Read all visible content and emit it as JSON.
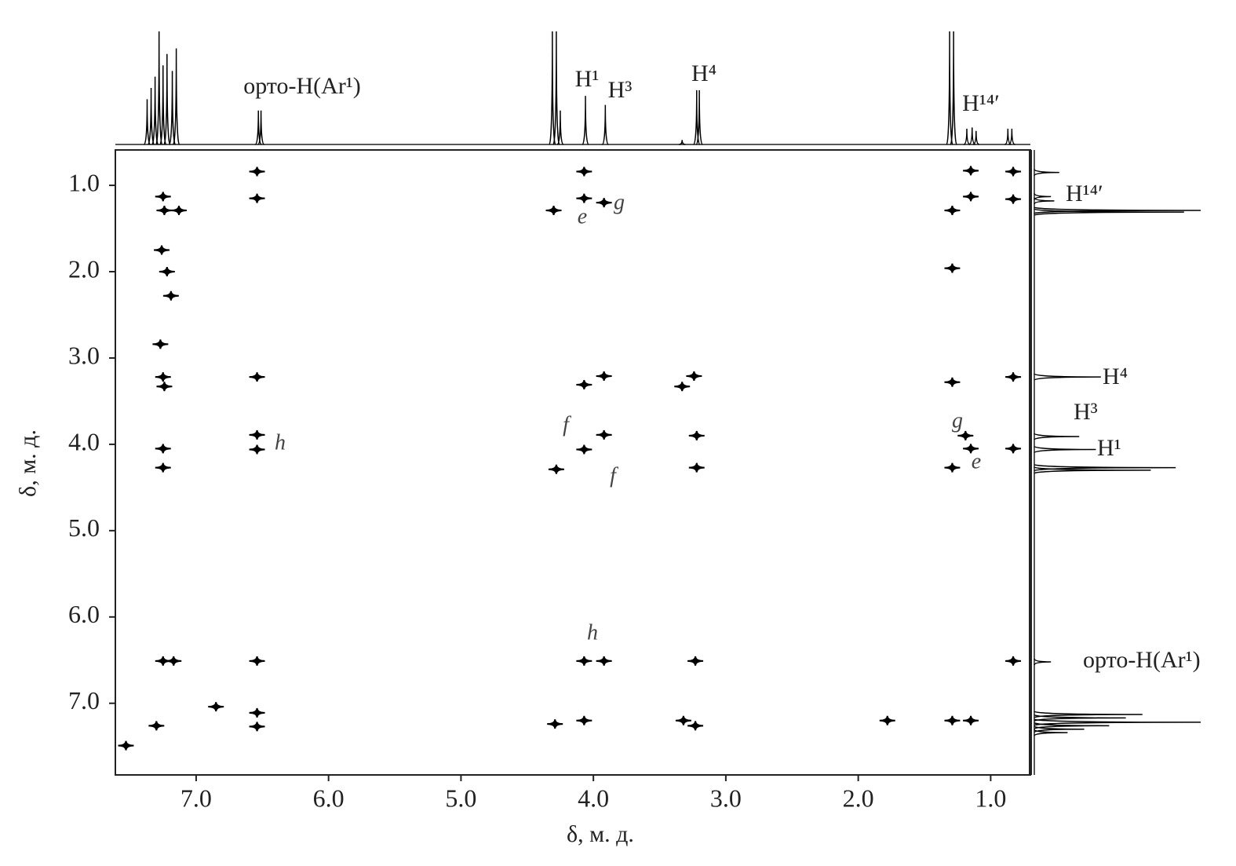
{
  "chart_data": {
    "type": "scatter",
    "xlabel": "δ, м. д.",
    "ylabel": "δ, м. д.",
    "color": "#000000",
    "xlim": [
      7.61,
      0.7
    ],
    "ylim": [
      0.59,
      7.83
    ],
    "xticks": [
      {
        "value": 7,
        "label": "7.0"
      },
      {
        "value": 6,
        "label": "6.0"
      },
      {
        "value": 5,
        "label": "5.0"
      },
      {
        "value": 4,
        "label": "4.0"
      },
      {
        "value": 3,
        "label": "3.0"
      },
      {
        "value": 2,
        "label": "2.0"
      },
      {
        "value": 1,
        "label": "1.0"
      }
    ],
    "yticks": [
      {
        "value": 1,
        "label": "1.0"
      },
      {
        "value": 2,
        "label": "2.0"
      },
      {
        "value": 3,
        "label": "3.0"
      },
      {
        "value": 4,
        "label": "4.0"
      },
      {
        "value": 5,
        "label": "5.0"
      },
      {
        "value": 6,
        "label": "6.0"
      },
      {
        "value": 7,
        "label": "7.0"
      }
    ],
    "x": [
      6.54,
      6.54,
      7.25,
      7.24,
      7.13,
      7.26,
      7.22,
      7.19,
      7.27,
      7.25,
      7.24,
      7.25,
      7.25,
      7.25,
      7.17,
      7.3,
      6.85,
      6.54,
      6.54,
      6.54,
      6.54,
      6.54,
      6.54,
      4.07,
      4.07,
      4.3,
      3.92,
      4.07,
      3.92,
      3.92,
      4.07,
      4.28,
      3.24,
      3.33,
      3.22,
      3.22,
      4.07,
      3.92,
      3.23,
      4.29,
      4.07,
      3.32,
      3.23,
      1.78,
      1.29,
      1.15,
      1.29,
      1.29,
      1.19,
      1.15,
      1.29,
      0.83,
      0.83,
      0.83,
      1.15,
      0.83,
      1.15,
      0.83,
      1.29,
      7.53
    ],
    "y": [
      0.84,
      1.15,
      1.13,
      1.29,
      1.29,
      1.75,
      2.0,
      2.28,
      2.84,
      3.22,
      3.33,
      4.05,
      4.27,
      6.51,
      6.51,
      7.26,
      7.04,
      3.22,
      3.89,
      4.06,
      6.51,
      7.11,
      7.27,
      0.84,
      1.15,
      1.29,
      1.2,
      3.31,
      3.21,
      3.89,
      4.06,
      4.29,
      3.21,
      3.33,
      3.9,
      4.27,
      6.51,
      6.51,
      6.51,
      7.24,
      7.2,
      7.2,
      7.26,
      7.2,
      7.2,
      7.2,
      1.96,
      3.28,
      3.9,
      4.05,
      4.27,
      3.22,
      4.05,
      6.51,
      0.83,
      0.84,
      1.13,
      1.16,
      1.29,
      7.49
    ],
    "top_projection": {
      "x": [
        7.37,
        7.34,
        7.31,
        7.28,
        7.25,
        7.22,
        7.18,
        7.15,
        6.53,
        6.51,
        4.31,
        4.28,
        4.25,
        4.06,
        3.91,
        3.33,
        3.22,
        3.2,
        1.31,
        1.28,
        1.18,
        1.14,
        1.11,
        0.87,
        0.84
      ],
      "values": [
        40,
        50,
        60,
        100,
        70,
        80,
        65,
        85,
        30,
        30,
        100,
        100,
        30,
        43,
        35,
        4,
        48,
        48,
        100,
        100,
        14,
        15,
        12,
        14,
        14
      ]
    },
    "side_projection": {
      "y": [
        0.85,
        1.13,
        1.18,
        1.29,
        1.31,
        3.22,
        3.91,
        4.06,
        4.27,
        4.3,
        6.52,
        7.13,
        7.17,
        7.22,
        7.26,
        7.3,
        7.34
      ],
      "values": [
        15,
        10,
        12,
        100,
        90,
        40,
        27,
        37,
        85,
        70,
        10,
        65,
        55,
        100,
        45,
        30,
        20
      ]
    },
    "top_labels": [
      "орто-H(Ar¹)",
      "H¹",
      "H³",
      "H⁴",
      "H¹⁴′"
    ],
    "side_labels": [
      "H¹⁴′",
      "H⁴",
      "H³",
      "H¹",
      "орто-H(Ar¹)"
    ],
    "annotations": [
      "e",
      "g",
      "f",
      "f",
      "h",
      "h",
      "g",
      "e"
    ]
  }
}
